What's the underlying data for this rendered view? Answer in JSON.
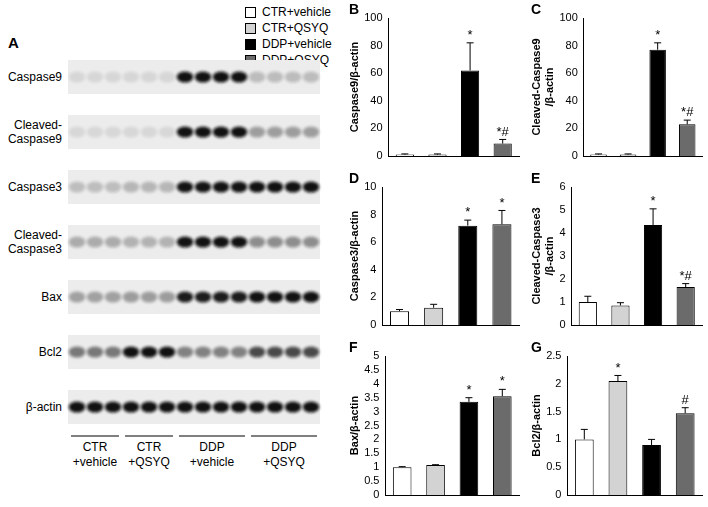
{
  "legend_items": [
    {
      "name": "CTR+vehicle",
      "color": "#ffffff"
    },
    {
      "name": "CTR+QSYQ",
      "color": "#d3d3d3"
    },
    {
      "name": "DDP+vehicle",
      "color": "#000000"
    },
    {
      "name": "DDP+QSYQ",
      "color": "#6b6b6b"
    }
  ],
  "blot": {
    "title": "A",
    "rows": [
      {
        "label": [
          "Caspase9"
        ],
        "panel": "B"
      },
      {
        "label": [
          "Cleaved-",
          "Caspase9"
        ],
        "panel": "C"
      },
      {
        "label": [
          "Caspase3"
        ],
        "panel": "D"
      },
      {
        "label": [
          "Cleaved-",
          "Caspase3"
        ],
        "panel": "E"
      },
      {
        "label": [
          "Bax"
        ],
        "panel": "F"
      },
      {
        "label": [
          "Bcl2"
        ],
        "panel": "G"
      },
      {
        "label": [
          "β-actin"
        ]
      }
    ],
    "groups": [
      {
        "label": [
          "CTR",
          "+vehicle"
        ],
        "lanes": 3
      },
      {
        "label": [
          "CTR",
          "+QSYQ"
        ],
        "lanes": 3
      },
      {
        "label": [
          "DDP",
          "+vehicle"
        ],
        "lanes": 4
      },
      {
        "label": [
          "DDP",
          "+QSYQ"
        ],
        "lanes": 4
      }
    ]
  },
  "chart_data": [
    {
      "type": "bar",
      "title": "B",
      "ylabel": [
        "Caspase9/β-actin"
      ],
      "categories": [
        null,
        null,
        null,
        null
      ],
      "values": [
        1,
        1,
        62,
        9
      ],
      "errors": [
        0.5,
        0.5,
        20,
        3
      ],
      "colors": [
        "#ffffff",
        "#d3d3d3",
        "#000000",
        "#6b6b6b"
      ],
      "annotations": [
        null,
        null,
        "*",
        "*#"
      ],
      "ylim": [
        0,
        100
      ],
      "yticks": [
        0,
        20,
        40,
        60,
        80,
        100
      ],
      "grid": false,
      "tick_labels": "y"
    },
    {
      "type": "bar",
      "title": "C",
      "ylabel": [
        "Cleaved-Caspase9",
        "/β-actin"
      ],
      "categories": [
        null,
        null,
        null,
        null
      ],
      "values": [
        1,
        1,
        77,
        23
      ],
      "errors": [
        0.5,
        0.5,
        5,
        3
      ],
      "colors": [
        "#ffffff",
        "#d3d3d3",
        "#000000",
        "#6b6b6b"
      ],
      "annotations": [
        null,
        null,
        "*",
        "*#"
      ],
      "ylim": [
        0,
        100
      ],
      "yticks": [
        0,
        20,
        40,
        60,
        80,
        100
      ],
      "grid": false,
      "tick_labels": "y"
    },
    {
      "type": "bar",
      "title": "D",
      "ylabel": [
        "Caspase3/β-actin"
      ],
      "categories": [
        null,
        null,
        null,
        null
      ],
      "values": [
        1.0,
        1.25,
        7.2,
        7.3
      ],
      "errors": [
        0.12,
        0.25,
        0.4,
        1.0
      ],
      "colors": [
        "#ffffff",
        "#d3d3d3",
        "#000000",
        "#6b6b6b"
      ],
      "annotations": [
        null,
        null,
        "*",
        "*"
      ],
      "ylim": [
        0,
        10
      ],
      "yticks": [
        0,
        2,
        4,
        6,
        8,
        10
      ],
      "grid": false,
      "tick_labels": "y"
    },
    {
      "type": "bar",
      "title": "E",
      "ylabel": [
        "Cleaved-Caspase3",
        "/β-actin"
      ],
      "categories": [
        null,
        null,
        null,
        null
      ],
      "values": [
        1.0,
        0.85,
        4.35,
        1.65
      ],
      "errors": [
        0.25,
        0.12,
        0.7,
        0.15
      ],
      "colors": [
        "#ffffff",
        "#d3d3d3",
        "#000000",
        "#6b6b6b"
      ],
      "annotations": [
        null,
        null,
        "*",
        "*#"
      ],
      "ylim": [
        0,
        6
      ],
      "yticks": [
        0,
        1,
        2,
        3,
        4,
        5,
        6
      ],
      "grid": false,
      "tick_labels": "y"
    },
    {
      "type": "bar",
      "title": "F",
      "ylabel": [
        "Bax/β-actin"
      ],
      "categories": [
        null,
        null,
        null,
        null
      ],
      "values": [
        1.0,
        1.08,
        3.35,
        3.55
      ],
      "errors": [
        0.02,
        0.01,
        0.15,
        0.25
      ],
      "colors": [
        "#ffffff",
        "#d3d3d3",
        "#000000",
        "#6b6b6b"
      ],
      "annotations": [
        null,
        null,
        "*",
        "*"
      ],
      "ylim": [
        0,
        5
      ],
      "yticks": [
        0,
        0.5,
        1,
        1.5,
        2,
        2.5,
        3,
        3.5,
        4,
        4.5,
        5
      ],
      "grid": false,
      "tick_labels": "y"
    },
    {
      "type": "bar",
      "title": "G",
      "ylabel": [
        "Bcl2/β-actin"
      ],
      "categories": [
        null,
        null,
        null,
        null
      ],
      "values": [
        1.0,
        2.05,
        0.9,
        1.47
      ],
      "errors": [
        0.18,
        0.1,
        0.1,
        0.1
      ],
      "colors": [
        "#ffffff",
        "#d3d3d3",
        "#000000",
        "#6b6b6b"
      ],
      "annotations": [
        null,
        "*",
        null,
        "#"
      ],
      "ylim": [
        0,
        2.5
      ],
      "yticks": [
        0,
        0.5,
        1,
        1.5,
        2,
        2.5
      ],
      "grid": false,
      "tick_labels": "y"
    }
  ]
}
